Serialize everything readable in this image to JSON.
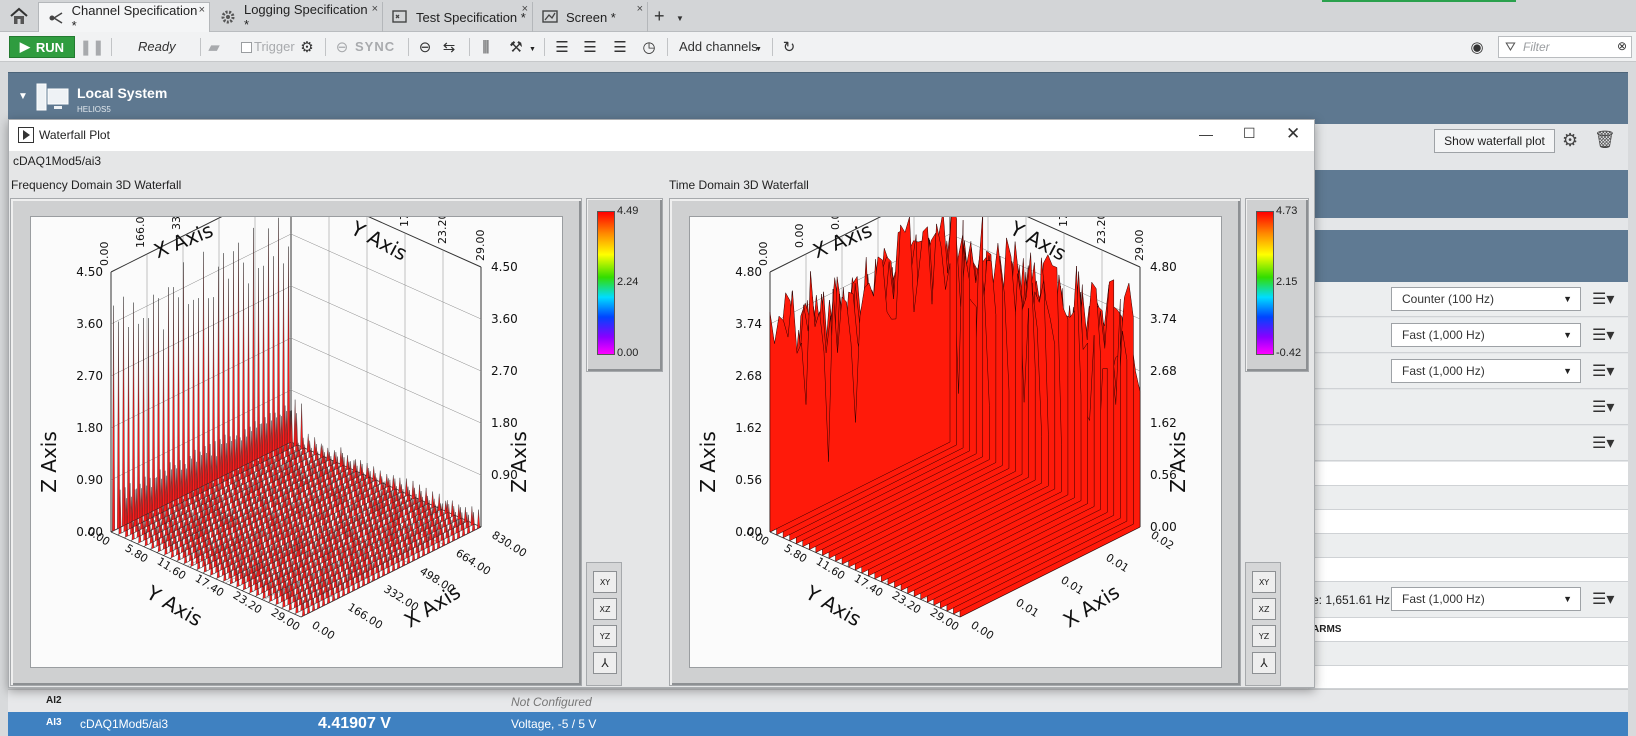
{
  "tabs": [
    {
      "label": "Channel Specification *",
      "icon": "channel-icon",
      "active": true
    },
    {
      "label": "Logging Specification *",
      "icon": "gear-icon",
      "active": false
    },
    {
      "label": "Test Specification *",
      "icon": "test-icon",
      "active": false
    },
    {
      "label": "Screen *",
      "icon": "screen-icon",
      "active": false
    }
  ],
  "tab_close": "×",
  "tab_add": "+",
  "toolbar": {
    "run_label": "RUN",
    "status": "Ready",
    "trigger_label": "Trigger",
    "sync_label": "SYNC",
    "add_channels_label": "Add channels",
    "filter_placeholder": "Filter"
  },
  "local_system": {
    "title": "Local System",
    "subtitle": "HELIOS5"
  },
  "panel": {
    "show_waterfall_label": "Show waterfall plot"
  },
  "rate_dropdowns": [
    "Counter (100 Hz)",
    "Fast (1,000 Hz)",
    "Fast (1,000 Hz)",
    "Fast (1,000 Hz)"
  ],
  "rate_text": "e: 1,651.61 Hz",
  "alarms_header": "ARMS",
  "rows": {
    "ai2": {
      "id": "AI2",
      "status": "Not Configured"
    },
    "ai3": {
      "id": "AI3",
      "channel": "cDAQ1Mod5/ai3",
      "value": "4.41907 V",
      "range": "Voltage, -5 / 5 V"
    }
  },
  "waterfall": {
    "window_title": "Waterfall Plot",
    "channel": "cDAQ1Mod5/ai3",
    "freq": {
      "title": "Frequency Domain 3D Waterfall",
      "legend": [
        "4.49",
        "2.24",
        "0.00"
      ],
      "x_axis": "X Axis",
      "y_axis": "Y Axis",
      "z_axis": "Z Axis",
      "x_ticks": [
        "830.00",
        "664.00",
        "498.00",
        "332.00",
        "166.00",
        "0.00"
      ],
      "y_ticks": [
        "0.00",
        "5.80",
        "11.60",
        "17.40",
        "23.20",
        "29.00"
      ],
      "z_ticks": [
        "4.50",
        "3.60",
        "2.70",
        "1.80",
        "0.90",
        "0.00"
      ],
      "z_ticks_right": [
        "4.50",
        "3.60",
        "2.70",
        "1.80",
        "0.90"
      ],
      "bottom_y_ticks": [
        "0.00",
        "5.80",
        "11.60",
        "17.40",
        "23.20",
        "29.00"
      ],
      "bottom_x_ticks": [
        "0.00",
        "166.00",
        "332.00",
        "498.00",
        "664.00",
        "830.00"
      ]
    },
    "time": {
      "title": "Time Domain 3D Waterfall",
      "legend": [
        "4.73",
        "2.15",
        "-0.42"
      ],
      "x_axis": "X Axis",
      "y_axis": "Y Axis",
      "z_axis": "Z Axis",
      "x_ticks": [
        "0.02",
        "0.01",
        "0.01",
        "0.01",
        "0.00",
        "0.00"
      ],
      "y_ticks": [
        "0.00",
        "5.80",
        "11.60",
        "17.40",
        "23.20",
        "29.00"
      ],
      "z_ticks": [
        "4.80",
        "3.74",
        "2.68",
        "1.62",
        "0.56",
        "0.00"
      ],
      "z_ticks_right": [
        "4.80",
        "3.74",
        "2.68",
        "1.62",
        "0.56",
        "0.00"
      ],
      "bottom_y_ticks": [
        "0.00",
        "5.80",
        "11.60",
        "17.40",
        "23.20",
        "29.00"
      ],
      "bottom_x_ticks": [
        "0.00",
        "0.01",
        "0.01",
        "0.01",
        "0.02"
      ]
    },
    "tools": [
      "XY",
      "XZ",
      "YZ",
      "rotate"
    ]
  }
}
